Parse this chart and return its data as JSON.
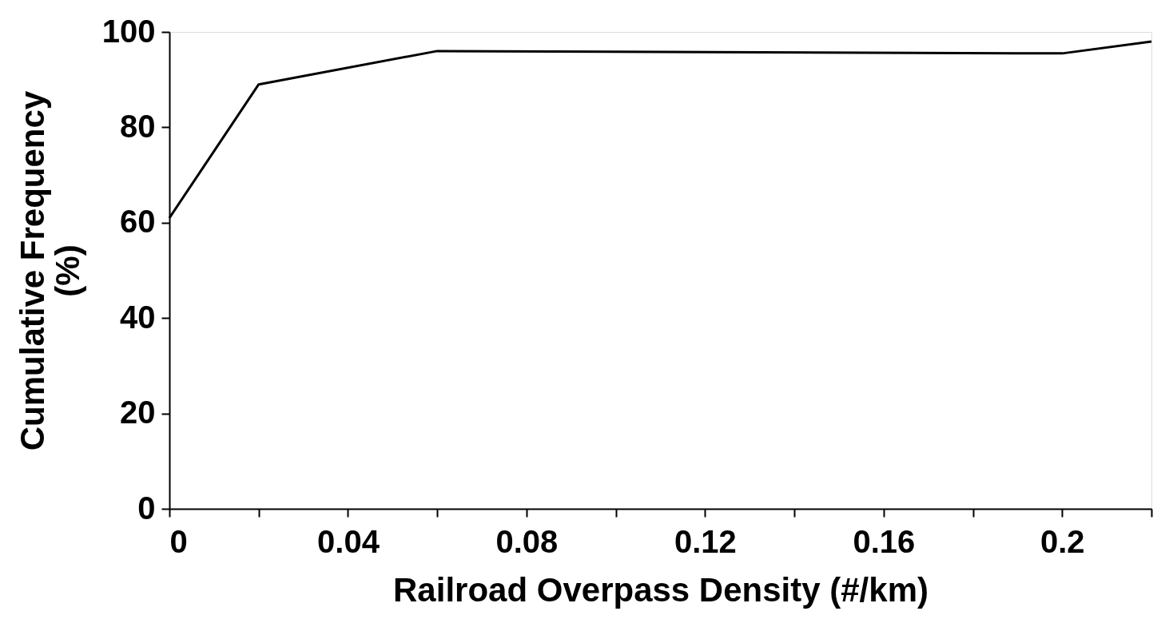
{
  "chart_data": {
    "type": "line",
    "xlabel": "Railroad Overpass Density (#/km)",
    "ylabel": "Cumulative Frequency\n(%)",
    "x": [
      0,
      0.02,
      0.06,
      0.2,
      0.22
    ],
    "series": [
      {
        "color": "#000000",
        "values": [
          61,
          89,
          96,
          95.5,
          98
        ]
      }
    ],
    "xlim": [
      0,
      0.22
    ],
    "xticks": [
      0,
      {
        "value": 0.02,
        "label": null
      },
      0.04,
      {
        "value": 0.06,
        "label": null
      },
      0.08,
      {
        "value": 0.1,
        "label": null
      },
      0.12,
      {
        "value": 0.14,
        "label": null
      },
      0.16,
      {
        "value": 0.18,
        "label": null
      },
      0.2,
      {
        "value": 0.22,
        "label": null
      }
    ],
    "ylim": [
      0,
      100
    ],
    "yticks": [
      0,
      20,
      40,
      60,
      80,
      100
    ],
    "grid": false,
    "marker": "none",
    "line_style": "solid"
  }
}
